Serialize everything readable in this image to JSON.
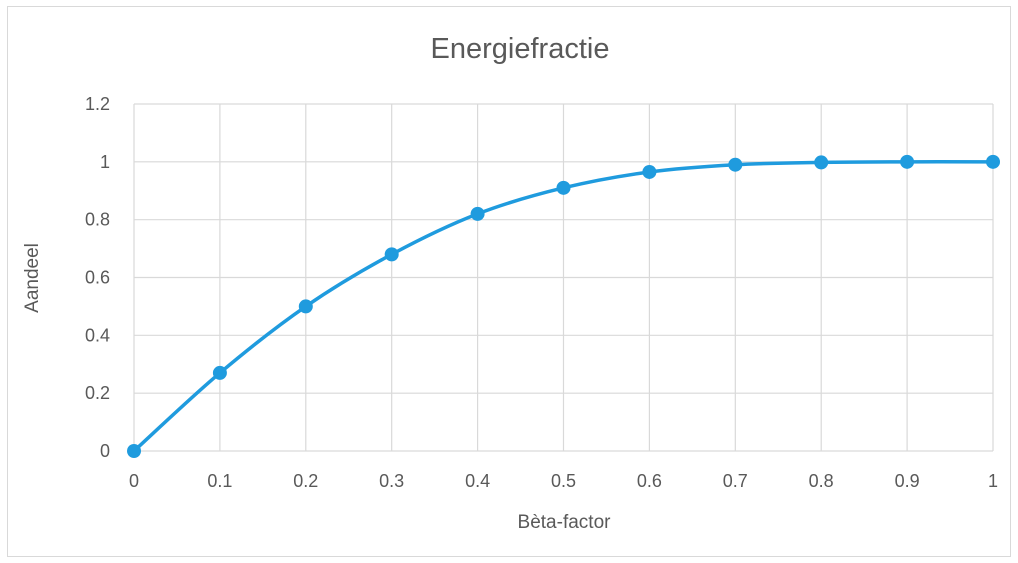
{
  "chart_data": {
    "type": "line",
    "title": "Energiefractie",
    "xlabel": "Bèta-factor",
    "ylabel": "Aandeel",
    "x": [
      0,
      0.1,
      0.2,
      0.3,
      0.4,
      0.5,
      0.6,
      0.7,
      0.8,
      0.9,
      1
    ],
    "series": [
      {
        "name": "",
        "values": [
          0,
          0.27,
          0.5,
          0.68,
          0.82,
          0.91,
          0.965,
          0.99,
          0.998,
          1.0,
          1.0
        ]
      }
    ],
    "xticks": [
      "0",
      "0.1",
      "0.2",
      "0.3",
      "0.4",
      "0.5",
      "0.6",
      "0.7",
      "0.8",
      "0.9",
      "1"
    ],
    "yticks": [
      "0",
      "0.2",
      "0.4",
      "0.6",
      "0.8",
      "1",
      "1.2"
    ],
    "xlim": [
      0,
      1
    ],
    "ylim": [
      0,
      1.2
    ],
    "grid": true,
    "legend": "none",
    "colors": {
      "series": "#1f9bde",
      "grid": "#d9d9d9",
      "text": "#595959"
    }
  }
}
